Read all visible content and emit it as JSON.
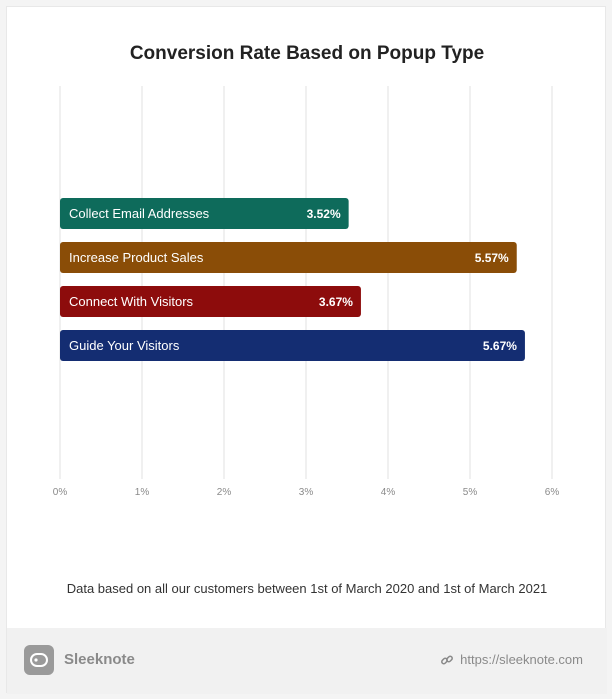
{
  "chart_data": {
    "type": "bar",
    "orientation": "horizontal",
    "title": "Conversion Rate Based on Popup Type",
    "categories": [
      "Collect Email Addresses",
      "Increase Product Sales",
      "Connect With Visitors",
      "Guide Your Visitors"
    ],
    "values": [
      3.52,
      5.57,
      3.67,
      5.67
    ],
    "value_labels": [
      "3.52%",
      "5.57%",
      "3.67%",
      "5.67%"
    ],
    "colors": [
      "#0e6b5b",
      "#8a4d07",
      "#8d0c0c",
      "#142d72"
    ],
    "xlim": [
      0,
      6
    ],
    "xticks": [
      0,
      1,
      2,
      3,
      4,
      5,
      6
    ],
    "xtick_labels": [
      "0%",
      "1%",
      "2%",
      "3%",
      "4%",
      "5%",
      "6%"
    ],
    "grid": true
  },
  "note": "Data based on all our customers between 1st of March 2020 and 1st of March 2021",
  "footer": {
    "brand": "Sleeknote",
    "link": "https://sleeknote.com",
    "logo_icon": "sleeknote-logo-icon",
    "link_icon": "link-icon"
  }
}
